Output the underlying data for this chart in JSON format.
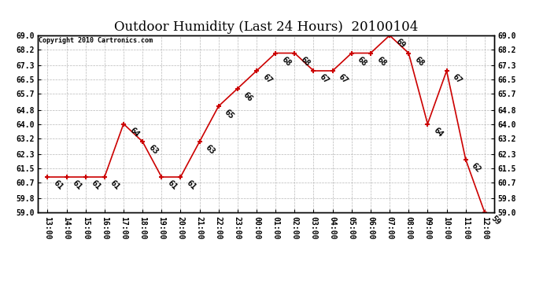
{
  "title": "Outdoor Humidity (Last 24 Hours)  20100104",
  "copyright": "Copyright 2010 Cartronics.com",
  "x_labels": [
    "13:00",
    "14:00",
    "15:00",
    "16:00",
    "17:00",
    "18:00",
    "19:00",
    "20:00",
    "21:00",
    "22:00",
    "23:00",
    "00:00",
    "01:00",
    "02:00",
    "03:00",
    "04:00",
    "05:00",
    "06:00",
    "07:00",
    "08:00",
    "09:00",
    "10:00",
    "11:00",
    "12:00"
  ],
  "y_values": [
    61,
    61,
    61,
    61,
    64,
    63,
    61,
    61,
    63,
    65,
    66,
    67,
    68,
    68,
    67,
    67,
    68,
    68,
    69,
    68,
    64,
    67,
    62,
    59
  ],
  "ylim_min": 59.0,
  "ylim_max": 69.0,
  "yticks": [
    59.0,
    59.8,
    60.7,
    61.5,
    62.3,
    63.2,
    64.0,
    64.8,
    65.7,
    66.5,
    67.3,
    68.2,
    69.0
  ],
  "line_color": "#cc0000",
  "marker_color": "#cc0000",
  "bg_color": "#ffffff",
  "grid_color": "#b0b0b0",
  "title_fontsize": 12,
  "label_fontsize": 7,
  "annotation_fontsize": 7.5
}
